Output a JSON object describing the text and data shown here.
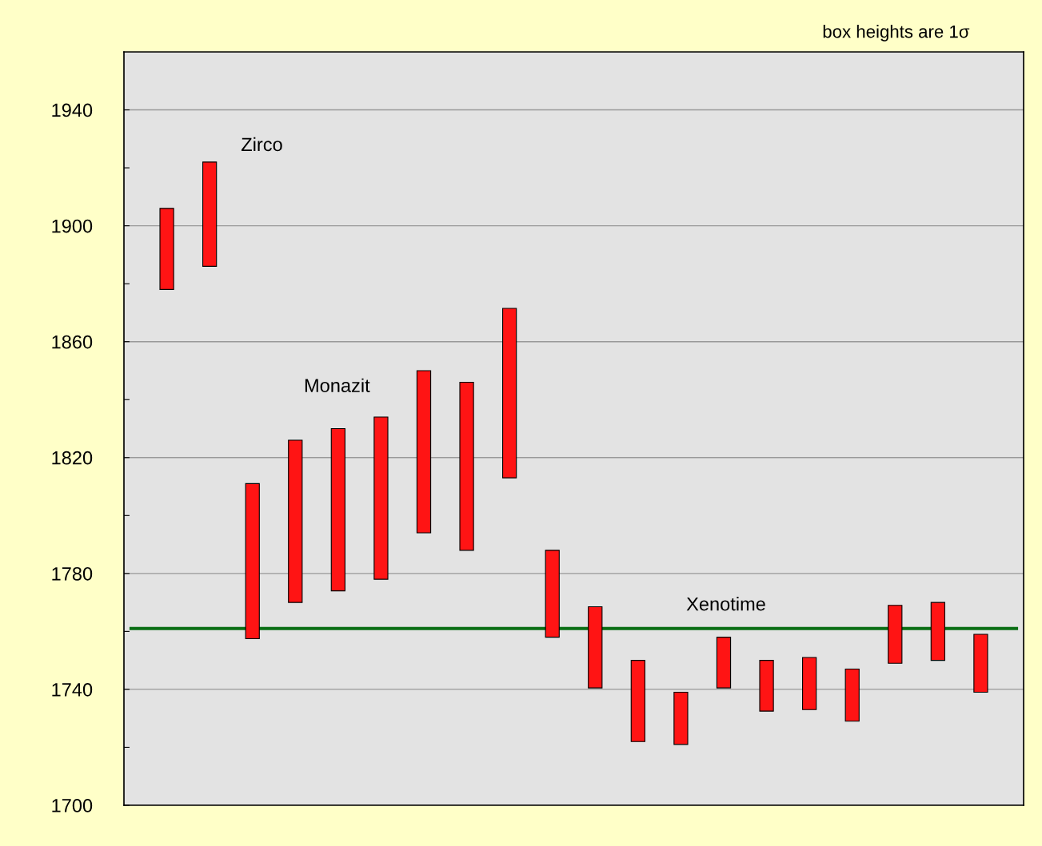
{
  "chart_data": {
    "type": "bar",
    "categories": [
      null,
      null,
      null,
      null,
      null,
      null,
      null,
      null,
      null,
      null,
      null,
      null,
      null,
      null,
      null,
      null,
      null,
      null,
      null,
      null
    ],
    "base": [
      1878,
      1886,
      1757.5,
      1770,
      1774,
      1778,
      1794,
      1788,
      1813,
      1758,
      1740.5,
      1722,
      1721,
      1740.5,
      1732.5,
      1733,
      1729,
      1749,
      1750,
      1739
    ],
    "values": [
      28,
      36,
      53.5,
      56,
      56,
      56,
      56,
      58,
      58.5,
      30,
      28,
      28,
      18,
      17.5,
      17.5,
      18,
      18,
      20,
      20,
      20
    ],
    "color": "#ff1414",
    "ylim": [
      1700,
      1960
    ],
    "yticks": [
      1700,
      {
        "value": 1720,
        "label": null
      },
      1740,
      {
        "value": 1760,
        "label": null
      },
      1780,
      {
        "value": 1800,
        "label": null
      },
      1820,
      {
        "value": 1840,
        "label": null
      },
      1860,
      {
        "value": 1880,
        "label": null
      },
      1900,
      {
        "value": 1920,
        "label": null
      },
      1940
    ],
    "tick_labels": "y",
    "grid": "y",
    "ref_lines": [
      {
        "axis": "y",
        "value": 1761,
        "color": "#0a6e14",
        "line_style": "solid"
      }
    ],
    "annotations": [
      "box heights are 1σ",
      "Zirco",
      "Monazit",
      "Xenotime"
    ]
  }
}
